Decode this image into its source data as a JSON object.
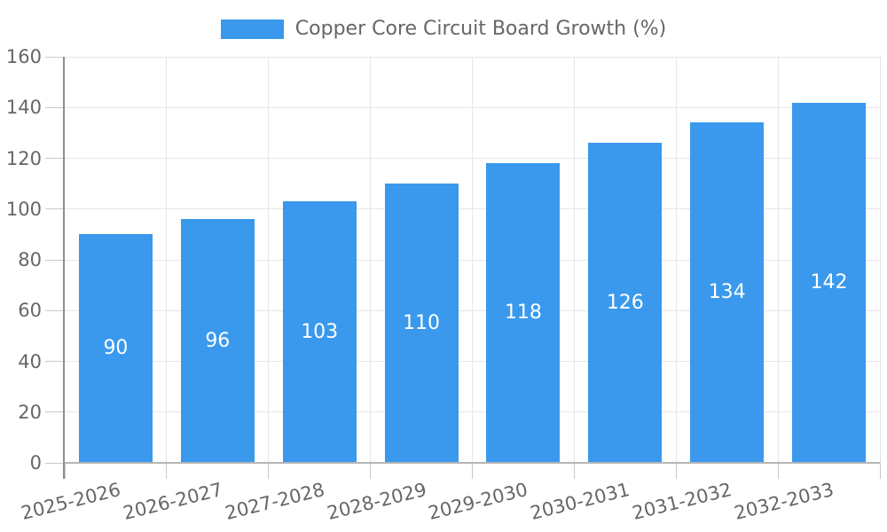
{
  "chart_data": {
    "type": "bar",
    "title": "Copper Core Circuit Board Growth (%)",
    "categories": [
      "2025-2026",
      "2026-2027",
      "2027-2028",
      "2028-2029",
      "2029-2030",
      "2030-2031",
      "2031-2032",
      "2032-2033"
    ],
    "values": [
      90,
      96,
      103,
      110,
      118,
      126,
      134,
      142
    ],
    "xlabel": "",
    "ylabel": "",
    "ylim": [
      0,
      160
    ],
    "ytick_step": 20,
    "yticks": [
      0,
      20,
      40,
      60,
      80,
      100,
      120,
      140,
      160
    ],
    "grid": true,
    "legend_position": "top-center",
    "bar_label_position": "inside-center",
    "x_label_rotation_deg": -14
  },
  "colors": {
    "bar": "#3A99EC",
    "bar_label": "#FFFFFF",
    "text": "#666666",
    "gridline": "#E6E6E6",
    "tick": "#C9C9C9",
    "y_axis_line": "#8E8E8E",
    "x_axis_line": "#B5B5B5",
    "background": "#FFFFFF"
  }
}
